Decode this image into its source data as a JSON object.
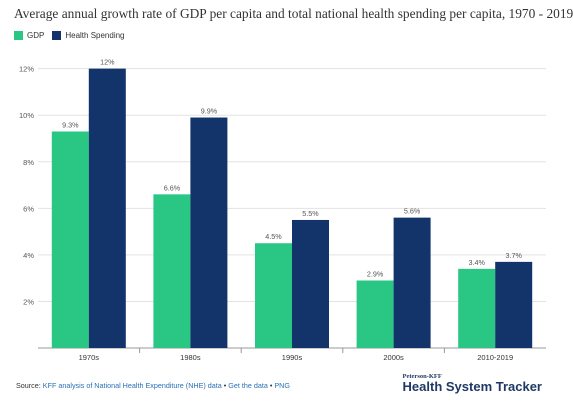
{
  "header": {
    "title": "Average annual growth rate of GDP per capita and total national health spending per capita, 1970 - 2019"
  },
  "colors": {
    "gdp": "#2ac784",
    "health": "#13346a",
    "grid": "#e3e3e3",
    "axis_text": "#555555"
  },
  "chart_data": {
    "type": "bar",
    "title": "Average annual growth rate of GDP per capita and total national health spending per capita, 1970 - 2019",
    "categories": [
      "1970s",
      "1980s",
      "1990s",
      "2000s",
      "2010-2019"
    ],
    "series": [
      {
        "name": "GDP",
        "values": [
          9.3,
          6.6,
          4.5,
          2.9,
          3.4
        ],
        "labels": [
          "9.3%",
          "6.6%",
          "4.5%",
          "2.9%",
          "3.4%"
        ]
      },
      {
        "name": "Health Spending",
        "values": [
          12,
          9.9,
          5.5,
          5.6,
          3.7
        ],
        "labels": [
          "12%",
          "9.9%",
          "5.5%",
          "5.6%",
          "3.7%"
        ]
      }
    ],
    "ylim": [
      0,
      12.8
    ],
    "yticks": [
      2,
      4,
      6,
      8,
      10,
      12
    ],
    "ytick_labels": [
      "2%",
      "4%",
      "6%",
      "8%",
      "10%",
      "12%"
    ],
    "grid": true,
    "legend_position": "top-left"
  },
  "footer": {
    "prefix": "Source: ",
    "source_link": "KFF analysis of National Health Expenditure (NHE) data",
    "sep1": " • ",
    "get_data": "Get the data",
    "sep2": " • ",
    "png": "PNG"
  },
  "brand": {
    "small": "Peterson-KFF",
    "big": "Health System Tracker"
  }
}
